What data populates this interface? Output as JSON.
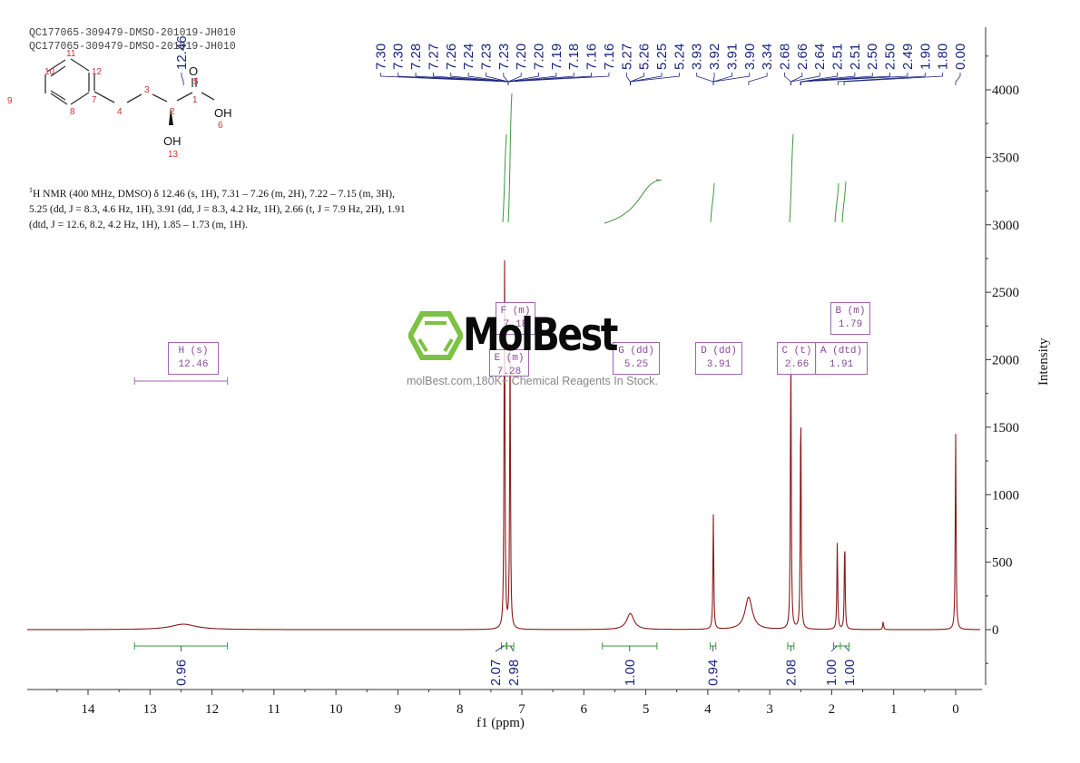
{
  "header": {
    "sample_id_line1": "QC177065-309479-DMSO-201019-JH010",
    "sample_id_line2": "QC177065-309479-DMSO-201019-JH010"
  },
  "structure": {
    "name": "(S)-2-hydroxy-4-phenylbutanoic acid",
    "atom_labels": [
      "1",
      "2",
      "3",
      "4",
      "5",
      "6",
      "7",
      "8",
      "9",
      "10",
      "11",
      "12",
      "13"
    ],
    "heteroatoms": [
      "O",
      "OH",
      "OH"
    ]
  },
  "nmr_description": {
    "prefix_sup": "1",
    "text": "H NMR (400 MHz, DMSO) δ 12.46 (s, 1H), 7.31 – 7.26 (m, 2H), 7.22 – 7.15 (m, 3H), 5.25 (dd, J = 8.3, 4.6 Hz, 1H), 3.91 (dd, J = 8.3, 4.2 Hz, 1H), 2.66 (t, J = 7.9 Hz, 2H), 1.91 (dtd, J = 12.6, 8.2, 4.2 Hz, 1H), 1.85 – 1.73 (m, 1H)."
  },
  "watermark": {
    "brand": "MolBest",
    "tagline": "molBest.com,180K+ Chemical Reagents In Stock.",
    "logo_color": "#7dc242"
  },
  "colors": {
    "spectrum": "#8b1a1a",
    "peak_labels": "#1a237e",
    "integrals": "#3a9a3a",
    "multiplet_box": "#a066b0",
    "axis": "#333333"
  },
  "chart_data": {
    "type": "line",
    "title": "",
    "xlabel": "f1 (ppm)",
    "ylabel": "Intensity",
    "xlim": [
      15.0,
      -0.4
    ],
    "ylim": [
      -450,
      4500
    ],
    "x_ticks": [
      14,
      13,
      12,
      11,
      10,
      9,
      8,
      7,
      6,
      5,
      4,
      3,
      2,
      1,
      0
    ],
    "y_ticks": [
      0,
      500,
      1000,
      1500,
      2000,
      2500,
      3000,
      3500,
      4000
    ],
    "grid": false,
    "peak_labels": [
      "12.46",
      "7.30",
      "7.30",
      "7.28",
      "7.27",
      "7.26",
      "7.24",
      "7.23",
      "7.23",
      "7.20",
      "7.20",
      "7.19",
      "7.18",
      "7.16",
      "7.16",
      "5.27",
      "5.26",
      "5.25",
      "5.24",
      "3.93",
      "3.92",
      "3.91",
      "3.90",
      "3.34",
      "2.68",
      "2.66",
      "2.64",
      "2.51",
      "2.51",
      "2.50",
      "2.50",
      "2.49",
      "1.90",
      "1.80",
      "0.00"
    ],
    "peaks": [
      {
        "ppm": 12.46,
        "intensity": 40,
        "shape": "broad"
      },
      {
        "ppm": 7.28,
        "intensity": 2850
      },
      {
        "ppm": 7.19,
        "intensity": 2100
      },
      {
        "ppm": 5.25,
        "intensity": 120,
        "shape": "broad"
      },
      {
        "ppm": 3.91,
        "intensity": 850
      },
      {
        "ppm": 3.34,
        "intensity": 240,
        "shape": "broad"
      },
      {
        "ppm": 2.66,
        "intensity": 2150
      },
      {
        "ppm": 2.5,
        "intensity": 1720
      },
      {
        "ppm": 1.91,
        "intensity": 650
      },
      {
        "ppm": 1.79,
        "intensity": 680
      },
      {
        "ppm": 1.17,
        "intensity": 60
      },
      {
        "ppm": 0.0,
        "intensity": 1450
      }
    ],
    "multiplets": [
      {
        "label": "H (s)",
        "value": "12.46",
        "ppm": 12.46
      },
      {
        "label": "F (m)",
        "value": "7.18",
        "ppm": 7.18
      },
      {
        "label": "E (m)",
        "value": "7.28",
        "ppm": 7.28
      },
      {
        "label": "G (dd)",
        "value": "5.25",
        "ppm": 5.25
      },
      {
        "label": "D (dd)",
        "value": "3.91",
        "ppm": 3.91
      },
      {
        "label": "C (t)",
        "value": "2.66",
        "ppm": 2.66
      },
      {
        "label": "A (dtd)",
        "value": "1.91",
        "ppm": 1.91
      },
      {
        "label": "B (m)",
        "value": "1.79",
        "ppm": 1.79
      }
    ],
    "integrals": [
      {
        "range": [
          13.25,
          11.75
        ],
        "value": "0.96"
      },
      {
        "range": [
          7.33,
          7.25
        ],
        "value": "2.07"
      },
      {
        "range": [
          7.24,
          7.13
        ],
        "value": "2.98"
      },
      {
        "range": [
          5.7,
          4.82
        ],
        "value": "1.00"
      },
      {
        "range": [
          3.96,
          3.87
        ],
        "value": "0.94"
      },
      {
        "range": [
          2.71,
          2.61
        ],
        "value": "2.08"
      },
      {
        "range": [
          1.97,
          1.86
        ],
        "value": "1.00"
      },
      {
        "range": [
          1.86,
          1.72
        ],
        "value": "1.00"
      }
    ]
  }
}
